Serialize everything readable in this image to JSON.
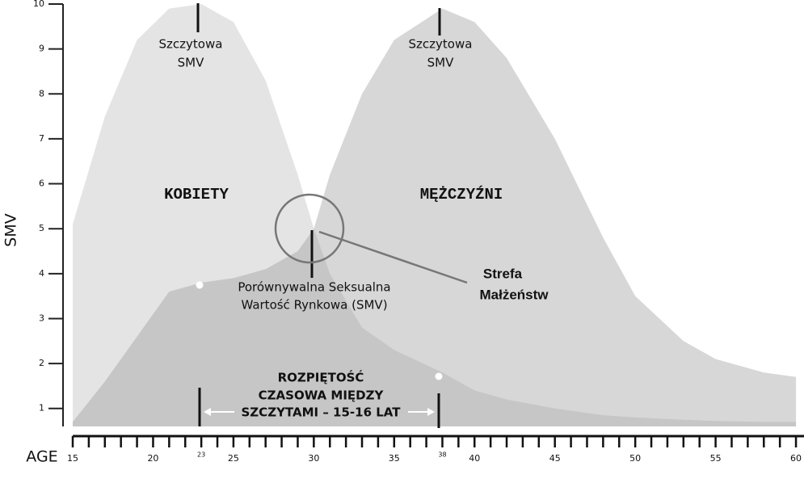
{
  "chart_data": {
    "type": "area",
    "x_label": "AGE",
    "y_label": "SMV",
    "x": [
      15,
      17,
      19,
      21,
      23,
      25,
      27,
      29,
      30,
      31,
      33,
      35,
      38,
      40,
      42,
      45,
      48,
      50,
      53,
      55,
      58,
      60
    ],
    "series": [
      {
        "name": "KOBIETY",
        "color": "#e4e4e4",
        "values": [
          5.1,
          7.5,
          9.2,
          9.9,
          10,
          9.6,
          8.3,
          6.2,
          5.0,
          4.0,
          2.8,
          2.3,
          1.8,
          1.4,
          1.2,
          1.0,
          0.85,
          0.8,
          0.75,
          0.72,
          0.7,
          0.7
        ]
      },
      {
        "name": "MĘŻCZYŹNI",
        "color": "rgba(150,150,150,0.38)",
        "values": [
          0.7,
          1.6,
          2.6,
          3.6,
          3.8,
          3.9,
          4.1,
          4.5,
          5.0,
          6.2,
          8.0,
          9.2,
          9.9,
          9.6,
          8.8,
          7.0,
          4.8,
          3.5,
          2.5,
          2.1,
          1.8,
          1.7
        ]
      }
    ],
    "xlim": [
      15,
      60.5
    ],
    "ylim": [
      0.6,
      10
    ],
    "xticks": [
      15,
      20,
      23,
      25,
      30,
      35,
      38,
      40,
      45,
      50,
      55,
      60
    ],
    "xminorticks": [
      15,
      16,
      17,
      18,
      19,
      20,
      21,
      22,
      23,
      24,
      25,
      26,
      27,
      28,
      29,
      30,
      31,
      32,
      33,
      34,
      35,
      36,
      37,
      38,
      39,
      40,
      41,
      42,
      43,
      44,
      45,
      46,
      47,
      48,
      49,
      50,
      51,
      52,
      53,
      54,
      55,
      56,
      57,
      58,
      59,
      60
    ],
    "yticks": [
      1,
      2,
      3,
      4,
      5,
      6,
      7,
      8,
      9,
      10
    ],
    "annotations": [
      {
        "lines": [
          "Szczytowa",
          "SMV"
        ]
      },
      {
        "lines": [
          "Szczytowa",
          "SMV"
        ]
      },
      {
        "lines": [
          "Porównywalna Seksualna",
          "Wartość Rynkowa (SMV)"
        ]
      },
      {
        "lines": [
          "Strefa",
          "Małżeństw"
        ]
      },
      {
        "lines": [
          "ROZPIĘTOŚĆ",
          "CZASOWA MIĘDZY",
          "SZCZYTAMI – 15-16 LAT"
        ]
      }
    ]
  }
}
